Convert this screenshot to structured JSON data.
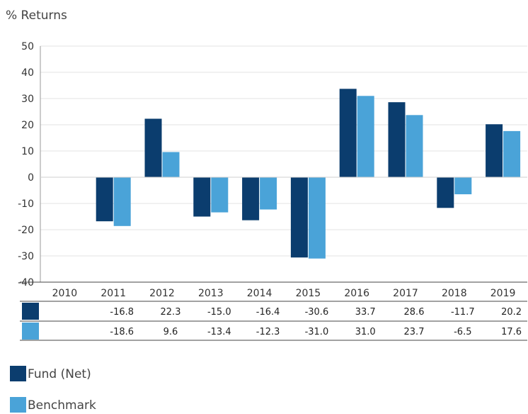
{
  "chart_data": {
    "type": "bar",
    "ylabel": "% Returns",
    "ylim": [
      -40,
      50
    ],
    "yticks": [
      50,
      40,
      30,
      20,
      10,
      0,
      -10,
      -20,
      -30,
      -40
    ],
    "categories": [
      "2010",
      "2011",
      "2012",
      "2013",
      "2014",
      "2015",
      "2016",
      "2017",
      "2018",
      "2019"
    ],
    "grid": true,
    "legend_position": "bottom-left",
    "series": [
      {
        "name": "Fund (Net)",
        "color": "#0b3d6e",
        "values": [
          null,
          -16.8,
          22.3,
          -15.0,
          -16.4,
          -30.6,
          33.7,
          28.6,
          -11.7,
          20.2
        ],
        "labels": [
          "",
          "-16.8",
          "22.3",
          "-15.0",
          "-16.4",
          "-30.6",
          "33.7",
          "28.6",
          "-11.7",
          "20.2"
        ]
      },
      {
        "name": "Benchmark",
        "color": "#4aa3d8",
        "values": [
          null,
          -18.6,
          9.6,
          -13.4,
          -12.3,
          -31.0,
          31.0,
          23.7,
          -6.5,
          17.6
        ],
        "labels": [
          "",
          "-18.6",
          "9.6",
          "-13.4",
          "-12.3",
          "-31.0",
          "31.0",
          "23.7",
          "-6.5",
          "17.6"
        ]
      }
    ]
  }
}
